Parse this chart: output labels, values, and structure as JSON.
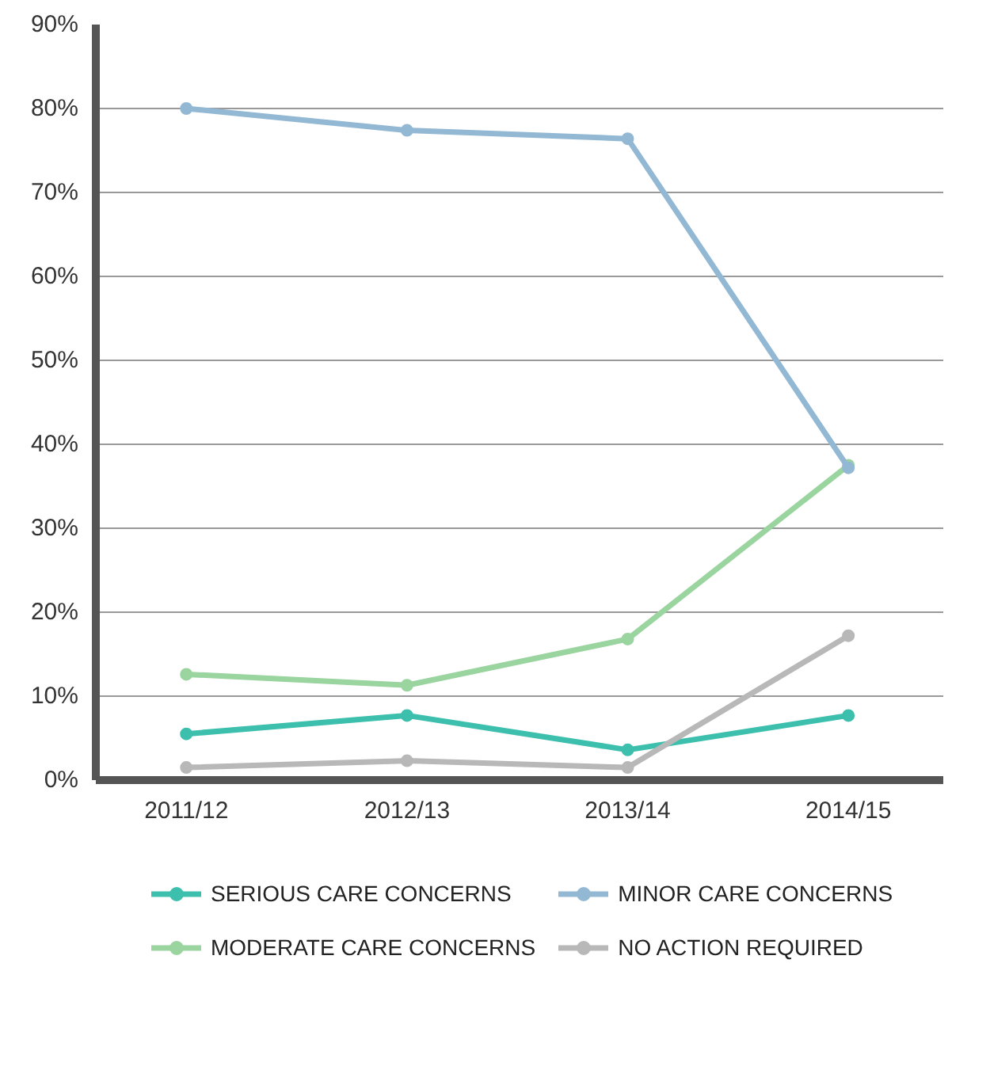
{
  "chart_data": {
    "type": "line",
    "categories": [
      "2011/12",
      "2012/13",
      "2013/14",
      "2014/15"
    ],
    "series": [
      {
        "name": "SERIOUS CARE CONCERNS",
        "color": "#3dbfad",
        "values": [
          5.5,
          7.7,
          3.6,
          7.7
        ]
      },
      {
        "name": "MODERATE CARE CONCERNS",
        "color": "#9ad49f",
        "values": [
          12.6,
          11.3,
          16.8,
          37.5
        ]
      },
      {
        "name": "MINOR CARE CONCERNS",
        "color": "#93b8d4",
        "values": [
          80.0,
          77.4,
          76.4,
          37.2
        ]
      },
      {
        "name": "NO ACTION REQUIRED",
        "color": "#b8b8b8",
        "values": [
          1.5,
          2.3,
          1.5,
          17.2
        ]
      }
    ],
    "ylim": [
      0,
      90
    ],
    "yticks": [
      {
        "value": 0,
        "label": "0%"
      },
      {
        "value": 10,
        "label": "10%"
      },
      {
        "value": 20,
        "label": "20%"
      },
      {
        "value": 30,
        "label": "30%"
      },
      {
        "value": 40,
        "label": "40%"
      },
      {
        "value": 50,
        "label": "50%"
      },
      {
        "value": 60,
        "label": "60%"
      },
      {
        "value": 70,
        "label": "70%"
      },
      {
        "value": 80,
        "label": "80%"
      },
      {
        "value": 90,
        "label": "90%"
      }
    ],
    "grid": "y",
    "legend": "bottom",
    "marker": "circle",
    "line_style": "solid"
  }
}
